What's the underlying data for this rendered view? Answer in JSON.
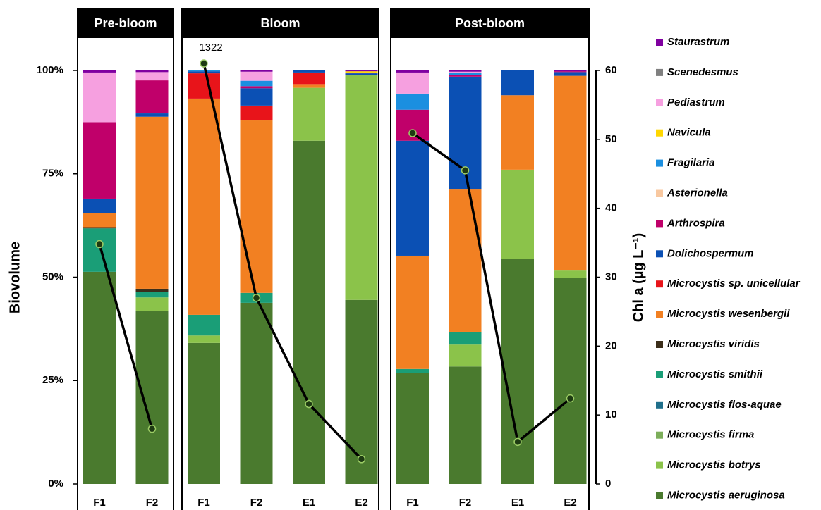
{
  "chart_data": {
    "type": "stacked-bar",
    "ylabel": "Biovolume",
    "y2label": "Chl a (µg L⁻¹)",
    "ylim": [
      0,
      100
    ],
    "yticks": [
      {
        "value": 0,
        "label": "0%"
      },
      {
        "value": 25,
        "label": "25%"
      },
      {
        "value": 50,
        "label": "50%"
      },
      {
        "value": 75,
        "label": "75%"
      },
      {
        "value": 100,
        "label": "100%"
      }
    ],
    "y2lim": [
      0,
      60
    ],
    "y2ticks": [
      0,
      10,
      20,
      30,
      40,
      50,
      60
    ],
    "panels": [
      {
        "title": "Pre-bloom",
        "categories": [
          "F1",
          "F2"
        ]
      },
      {
        "title": "Bloom",
        "categories": [
          "F1",
          "F2",
          "E1",
          "E2"
        ]
      },
      {
        "title": "Post-bloom",
        "categories": [
          "F1",
          "F2",
          "E1",
          "E2"
        ]
      }
    ],
    "series": [
      {
        "name": "Microcystis aeruginosa",
        "color": "#4a7a2e",
        "values": [
          51.3,
          41.9,
          34.1,
          43.8,
          83,
          44.5,
          26.9,
          28.4,
          54.5,
          49.9
        ]
      },
      {
        "name": "Microcystis botrys",
        "color": "#8bc34a",
        "values": [
          0,
          3.2,
          1.8,
          0,
          12.8,
          54.3,
          0,
          5.3,
          21.5,
          1.7
        ]
      },
      {
        "name": "Microcystis firma",
        "color": "#7cae5a",
        "values": [
          0,
          0,
          0,
          0,
          0,
          0,
          0,
          0,
          0,
          0
        ]
      },
      {
        "name": "Microcystis flos-aquae",
        "color": "#1f6f8b",
        "values": [
          0,
          0,
          0,
          0,
          0,
          0,
          0,
          0,
          0,
          0
        ]
      },
      {
        "name": "Microcystis smithii",
        "color": "#1a9e77",
        "values": [
          10.5,
          1.3,
          5,
          2.4,
          0,
          0,
          0.9,
          3.1,
          0,
          0
        ]
      },
      {
        "name": "Microcystis viridis",
        "color": "#3b2e1a",
        "values": [
          0.3,
          0.8,
          0,
          0,
          0,
          0,
          0,
          0,
          0,
          0
        ]
      },
      {
        "name": "Microcystis wesenbergii",
        "color": "#f28022",
        "values": [
          3.4,
          41.6,
          52.3,
          41.7,
          0.9,
          0,
          27.4,
          34.4,
          18,
          47.1
        ]
      },
      {
        "name": "Microcystis sp. unicellular",
        "color": "#e8141a",
        "values": [
          0,
          0,
          6.1,
          3.6,
          2.8,
          0,
          0,
          0,
          0,
          0
        ]
      },
      {
        "name": "Dolichospermum",
        "color": "#0b50b4",
        "values": [
          3.5,
          0.8,
          0.5,
          4.2,
          0.5,
          0.5,
          27.8,
          27.3,
          6,
          0.9
        ]
      },
      {
        "name": "Arthrospira",
        "color": "#c0006a",
        "values": [
          18.5,
          8,
          0,
          0.5,
          0,
          0.2,
          7.5,
          0.4,
          0,
          0.2
        ]
      },
      {
        "name": "Asterionella",
        "color": "#f8c8a0",
        "values": [
          0,
          0,
          0,
          0,
          0,
          0,
          0,
          0,
          0,
          0
        ]
      },
      {
        "name": "Fragilaria",
        "color": "#1b8fe0",
        "values": [
          0,
          0,
          0.2,
          1.3,
          0,
          0,
          3.9,
          0.5,
          0,
          0
        ]
      },
      {
        "name": "Navicula",
        "color": "#ffd700",
        "values": [
          0,
          0,
          0,
          0,
          0,
          0.3,
          0,
          0,
          0,
          0
        ]
      },
      {
        "name": "Pediastrum",
        "color": "#f6a0e0",
        "values": [
          12,
          2,
          0,
          2.2,
          0,
          0,
          5.1,
          0.3,
          0,
          0
        ]
      },
      {
        "name": "Scenedesmus",
        "color": "#808080",
        "values": [
          0,
          0,
          0,
          0,
          0,
          0,
          0,
          0,
          0,
          0
        ]
      },
      {
        "name": "Staurastrum",
        "color": "#8000a0",
        "values": [
          0.5,
          0.4,
          0,
          0.3,
          0,
          0.2,
          0.5,
          0.3,
          0,
          0.2
        ]
      }
    ],
    "chl_a": {
      "axis": "y2",
      "color": "#000000",
      "values": [
        34.8,
        8,
        1322,
        27,
        11.6,
        3.6,
        50.9,
        45.5,
        6.1,
        12.4
      ]
    }
  }
}
